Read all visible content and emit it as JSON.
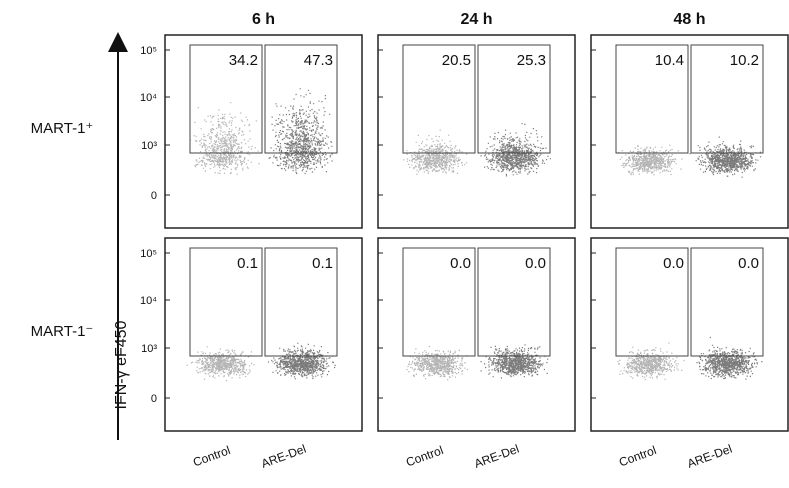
{
  "columns": [
    "6 h",
    "24 h",
    "48 h"
  ],
  "rows": [
    {
      "label": "MART-1⁺",
      "gates": [
        [
          "34.2",
          "47.3"
        ],
        [
          "20.5",
          "25.3"
        ],
        [
          "10.4",
          "10.2"
        ]
      ]
    },
    {
      "label": "MART-1⁻",
      "gates": [
        [
          "0.1",
          "0.1"
        ],
        [
          "0.0",
          "0.0"
        ],
        [
          "0.0",
          "0.0"
        ]
      ]
    }
  ],
  "y_axis": {
    "label": "IFN-γ eF450",
    "ticks": [
      "10⁵",
      "10⁴",
      "10³",
      "0"
    ]
  },
  "x_labels": [
    "Control",
    "ARE-Del"
  ]
}
